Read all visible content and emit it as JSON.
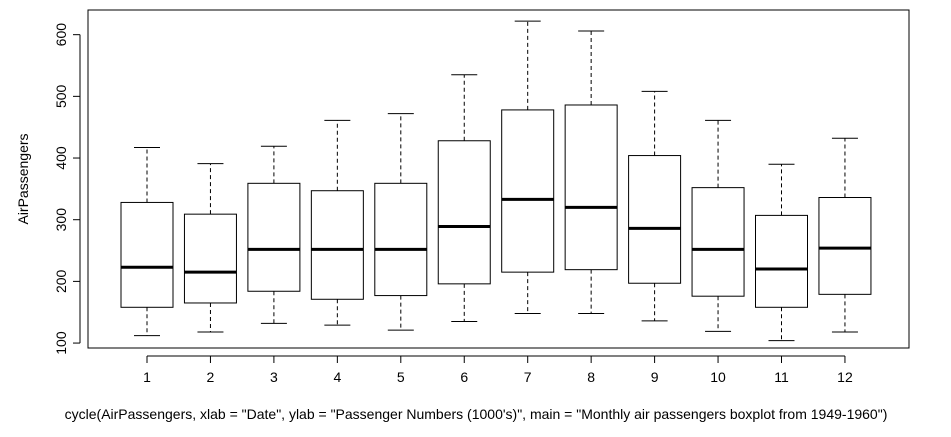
{
  "chart_data": {
    "type": "boxplot",
    "ylabel": "AirPassengers",
    "caption": "cycle(AirPassengers, xlab = \"Date\", ylab = \"Passenger Numbers (1000's)\", main = \"Monthly air passengers boxplot from 1949-1960\")",
    "categories": [
      "1",
      "2",
      "3",
      "4",
      "5",
      "6",
      "7",
      "8",
      "9",
      "10",
      "11",
      "12"
    ],
    "boxes": [
      {
        "category": "1",
        "whisker_low": 112,
        "q1": 158,
        "median": 223,
        "q3": 328,
        "whisker_high": 417
      },
      {
        "category": "2",
        "whisker_low": 118,
        "q1": 165,
        "median": 215,
        "q3": 309,
        "whisker_high": 391
      },
      {
        "category": "3",
        "whisker_low": 132,
        "q1": 184,
        "median": 252,
        "q3": 359,
        "whisker_high": 419
      },
      {
        "category": "4",
        "whisker_low": 129,
        "q1": 171,
        "median": 252,
        "q3": 347,
        "whisker_high": 461
      },
      {
        "category": "5",
        "whisker_low": 121,
        "q1": 177,
        "median": 252,
        "q3": 359,
        "whisker_high": 472
      },
      {
        "category": "6",
        "whisker_low": 135,
        "q1": 196,
        "median": 289,
        "q3": 428,
        "whisker_high": 535
      },
      {
        "category": "7",
        "whisker_low": 148,
        "q1": 215,
        "median": 333,
        "q3": 478,
        "whisker_high": 622
      },
      {
        "category": "8",
        "whisker_low": 148,
        "q1": 219,
        "median": 320,
        "q3": 486,
        "whisker_high": 606
      },
      {
        "category": "9",
        "whisker_low": 136,
        "q1": 197,
        "median": 286,
        "q3": 404,
        "whisker_high": 508
      },
      {
        "category": "10",
        "whisker_low": 119,
        "q1": 176,
        "median": 252,
        "q3": 352,
        "whisker_high": 461
      },
      {
        "category": "11",
        "whisker_low": 104,
        "q1": 158,
        "median": 220,
        "q3": 307,
        "whisker_high": 390
      },
      {
        "category": "12",
        "whisker_low": 118,
        "q1": 179,
        "median": 254,
        "q3": 336,
        "whisker_high": 432
      }
    ],
    "y_ticks": [
      100,
      200,
      300,
      400,
      500,
      600
    ],
    "ylim": [
      92,
      640
    ],
    "grid": false,
    "colors": {
      "box_fill": "#ffffff",
      "line": "#000000"
    }
  }
}
